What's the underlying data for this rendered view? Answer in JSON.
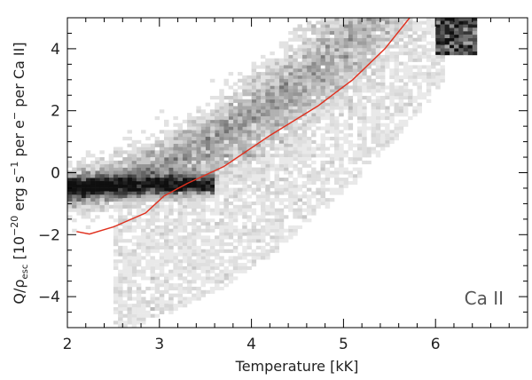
{
  "chart_data": {
    "type": "heatmap",
    "title": "",
    "xlabel": "Temperature [kK]",
    "ylabel_parts": {
      "q": "Q/",
      "rho": "ρ",
      "esc": "esc",
      "bracket_open": " [10",
      "exp1": "−20",
      "erg": " erg s",
      "exp2": "−1",
      "per_e": " per e",
      "exp3": "−",
      "per_ca": " per Ca II]"
    },
    "xlim": [
      2.0,
      7.0
    ],
    "ylim": [
      -5.0,
      5.0
    ],
    "x_ticks": [
      2,
      3,
      4,
      5,
      6
    ],
    "x_tick_labels": [
      "2",
      "3",
      "4",
      "5",
      "6"
    ],
    "y_ticks": [
      -4,
      -2,
      0,
      2,
      4
    ],
    "y_tick_labels": [
      "−4",
      "−2",
      "0",
      "2",
      "4"
    ],
    "annotation": "Ca II",
    "series": [
      {
        "type": "line",
        "color": "#e0301e",
        "x": [
          2.1,
          2.24,
          2.5,
          2.85,
          3.05,
          3.3,
          3.7,
          4.2,
          4.72,
          5.1,
          5.45,
          5.72
        ],
        "y": [
          -1.9,
          -1.98,
          -1.75,
          -1.3,
          -0.75,
          -0.35,
          0.2,
          1.2,
          2.15,
          3.0,
          4.0,
          5.0
        ]
      }
    ],
    "density_colormap": "grayscale, white = low, black = high"
  }
}
